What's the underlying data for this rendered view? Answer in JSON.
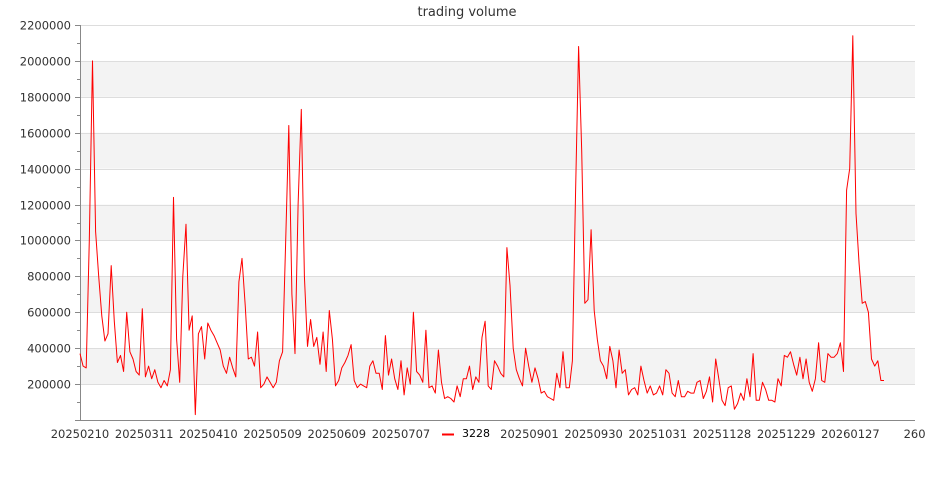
{
  "chart_data": {
    "type": "line",
    "title": "trading volume",
    "xlabel": "",
    "ylabel": "",
    "ylim": [
      0,
      2200000
    ],
    "yticks": [
      0,
      200000,
      400000,
      600000,
      800000,
      1000000,
      1200000,
      1400000,
      1600000,
      1800000,
      2000000,
      2200000
    ],
    "ytick_labels": [
      "",
      "200000",
      "400000",
      "600000",
      "800000",
      "1000000",
      "1200000",
      "1400000",
      "1600000",
      "1800000",
      "2000000",
      "2200000"
    ],
    "xtick_labels": [
      "20250210",
      "20250311",
      "20250410",
      "20250509",
      "20250609",
      "20250707",
      "",
      "20250901",
      "20250930",
      "20251031",
      "20251128",
      "20251229",
      "20260127",
      "260"
    ],
    "grid": true,
    "banded_background": true,
    "legend": {
      "position": "bottom-center",
      "entries": [
        "3228"
      ]
    },
    "colors": {
      "series": "#ff0000",
      "band": "#f3f3f3",
      "grid": "#dddddd",
      "axis": "#888888"
    },
    "series": [
      {
        "name": "3228",
        "values": [
          370000,
          300000,
          290000,
          1000000,
          2000000,
          1050000,
          800000,
          580000,
          440000,
          480000,
          860000,
          550000,
          320000,
          360000,
          270000,
          600000,
          380000,
          340000,
          270000,
          250000,
          620000,
          240000,
          300000,
          230000,
          280000,
          210000,
          180000,
          220000,
          190000,
          280000,
          1240000,
          450000,
          210000,
          800000,
          1090000,
          500000,
          580000,
          30000,
          480000,
          520000,
          340000,
          540000,
          500000,
          470000,
          430000,
          390000,
          300000,
          260000,
          350000,
          290000,
          240000,
          770000,
          900000,
          640000,
          340000,
          350000,
          300000,
          490000,
          180000,
          200000,
          240000,
          210000,
          180000,
          210000,
          330000,
          380000,
          1000000,
          1640000,
          700000,
          370000,
          1200000,
          1730000,
          800000,
          410000,
          560000,
          410000,
          460000,
          310000,
          490000,
          270000,
          610000,
          450000,
          190000,
          220000,
          290000,
          320000,
          360000,
          420000,
          220000,
          180000,
          200000,
          190000,
          180000,
          300000,
          330000,
          260000,
          260000,
          170000,
          470000,
          250000,
          340000,
          230000,
          170000,
          330000,
          140000,
          290000,
          200000,
          600000,
          270000,
          250000,
          210000,
          500000,
          180000,
          190000,
          150000,
          390000,
          210000,
          120000,
          130000,
          120000,
          100000,
          190000,
          130000,
          230000,
          230000,
          300000,
          170000,
          240000,
          210000,
          460000,
          550000,
          190000,
          170000,
          330000,
          300000,
          260000,
          240000,
          960000,
          750000,
          400000,
          280000,
          230000,
          190000,
          400000,
          300000,
          210000,
          290000,
          230000,
          150000,
          160000,
          130000,
          120000,
          110000,
          260000,
          180000,
          380000,
          180000,
          180000,
          330000,
          1250000,
          2080000,
          1500000,
          650000,
          670000,
          1060000,
          610000,
          450000,
          330000,
          300000,
          230000,
          410000,
          330000,
          180000,
          390000,
          260000,
          280000,
          140000,
          170000,
          180000,
          140000,
          300000,
          220000,
          150000,
          190000,
          140000,
          150000,
          190000,
          140000,
          280000,
          260000,
          150000,
          130000,
          220000,
          130000,
          130000,
          160000,
          150000,
          150000,
          210000,
          220000,
          120000,
          160000,
          240000,
          100000,
          340000,
          230000,
          110000,
          80000,
          180000,
          190000,
          60000,
          90000,
          150000,
          110000,
          230000,
          130000,
          370000,
          110000,
          110000,
          210000,
          170000,
          110000,
          110000,
          100000,
          230000,
          190000,
          360000,
          350000,
          380000,
          310000,
          250000,
          350000,
          230000,
          340000,
          210000,
          160000,
          230000,
          430000,
          220000,
          210000,
          370000,
          350000,
          350000,
          370000,
          430000,
          270000,
          1280000,
          1400000,
          2140000,
          1150000,
          870000,
          650000,
          660000,
          600000,
          340000,
          300000,
          330000,
          220000,
          220000
        ]
      }
    ]
  }
}
